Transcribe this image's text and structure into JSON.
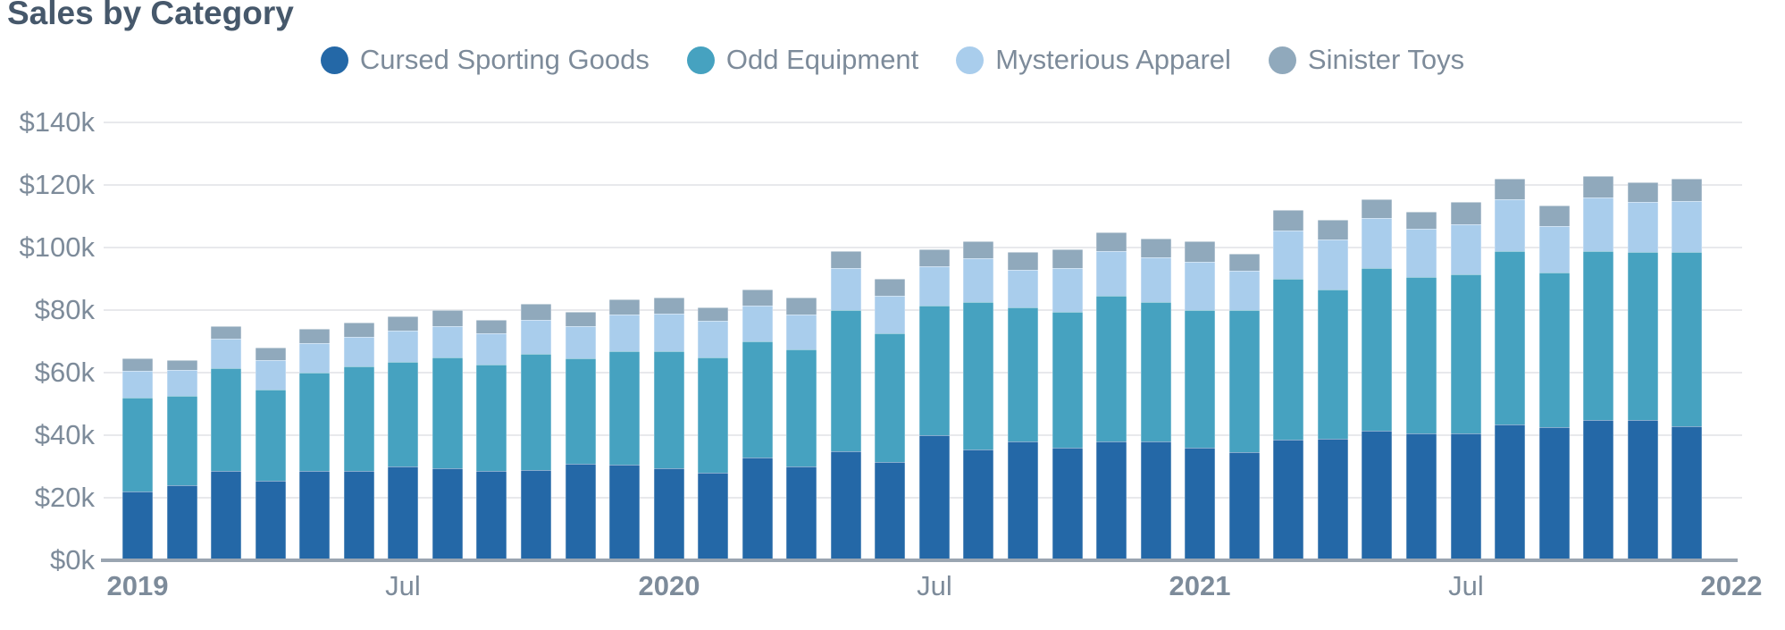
{
  "title": "Sales by Category",
  "colors": {
    "title_text": "#46586b",
    "axis_text": "#7d8b9a",
    "gridline": "#e8e9ec",
    "axis_baseline": "#9aa5b1",
    "background": "#ffffff"
  },
  "legend": {
    "position": "top-center",
    "items": [
      {
        "label": "Cursed Sporting Goods",
        "color": "#2468a7"
      },
      {
        "label": "Odd Equipment",
        "color": "#46a2c0"
      },
      {
        "label": "Mysterious Apparel",
        "color": "#a9cdec"
      },
      {
        "label": "Sinister Toys",
        "color": "#90a9bc"
      }
    ]
  },
  "chart_data": {
    "type": "bar",
    "stacked": true,
    "title": "Sales by Category",
    "xlabel": "",
    "ylabel": "",
    "units": "$k",
    "ylim": [
      0,
      140
    ],
    "ytick_step": 20,
    "ytick_labels": [
      "$0k",
      "$20k",
      "$40k",
      "$60k",
      "$80k",
      "$100k",
      "$120k",
      "$140k"
    ],
    "grid": "horizontal",
    "legend_position": "top",
    "categories": [
      "Jan 2019",
      "Feb 2019",
      "Mar 2019",
      "Apr 2019",
      "May 2019",
      "Jun 2019",
      "Jul 2019",
      "Aug 2019",
      "Sep 2019",
      "Oct 2019",
      "Nov 2019",
      "Dec 2019",
      "Jan 2020",
      "Feb 2020",
      "Mar 2020",
      "Apr 2020",
      "May 2020",
      "Jun 2020",
      "Jul 2020",
      "Aug 2020",
      "Sep 2020",
      "Oct 2020",
      "Nov 2020",
      "Dec 2020",
      "Jan 2021",
      "Feb 2021",
      "Mar 2021",
      "Apr 2021",
      "May 2021",
      "Jun 2021",
      "Jul 2021",
      "Aug 2021",
      "Sep 2021",
      "Oct 2021",
      "Nov 2021",
      "Dec 2021"
    ],
    "series": [
      {
        "name": "Cursed Sporting Goods",
        "color": "#2468a7",
        "values": [
          22,
          24,
          28.5,
          25.5,
          28.5,
          28.5,
          30,
          29.5,
          28.5,
          29,
          31,
          30.5,
          29.5,
          28,
          33,
          30,
          35,
          31.5,
          40,
          35.5,
          38,
          36,
          38,
          38,
          36,
          34.5,
          38.5,
          39,
          41.5,
          40.5,
          40.5,
          43.5,
          42.5,
          45,
          45,
          43
        ]
      },
      {
        "name": "Odd Equipment",
        "color": "#46a2c0",
        "values": [
          30,
          28.5,
          33,
          29,
          31.5,
          33.5,
          33.5,
          35.5,
          34,
          37,
          33.5,
          36.5,
          37.5,
          37,
          37,
          37.5,
          45,
          41,
          41.5,
          47,
          43,
          43.5,
          46.5,
          44.5,
          44,
          45.5,
          51.5,
          47.5,
          52,
          50,
          51,
          55.5,
          49.5,
          54,
          53.5,
          55.5
        ]
      },
      {
        "name": "Mysterious Apparel",
        "color": "#a9cdec",
        "values": [
          8.5,
          8.5,
          9.5,
          9.5,
          9.5,
          9.5,
          10,
          10,
          10,
          11,
          10.5,
          11.5,
          12,
          11.5,
          11.5,
          11,
          13.5,
          12,
          12.5,
          14,
          12,
          14,
          14.5,
          14.5,
          15.5,
          12.5,
          15.5,
          16,
          16,
          15.5,
          16,
          16.5,
          15,
          17,
          16,
          16.5
        ]
      },
      {
        "name": "Sinister Toys",
        "color": "#90a9bc",
        "values": [
          4,
          3,
          4,
          4,
          4.5,
          4.5,
          4.5,
          5,
          4.5,
          5,
          4.5,
          5,
          5,
          4.5,
          5,
          5.5,
          5.5,
          5.5,
          5.5,
          5.5,
          5.5,
          6,
          6,
          6,
          6.5,
          5.5,
          6.5,
          6.5,
          6,
          5.5,
          7,
          6.5,
          6.5,
          7,
          6.5,
          7
        ]
      }
    ],
    "xtick_labels": [
      {
        "barIndex": 0,
        "label": "2019",
        "bold": true
      },
      {
        "barIndex": 6,
        "label": "Jul",
        "bold": false
      },
      {
        "barIndex": 12,
        "label": "2020",
        "bold": true
      },
      {
        "barIndex": 18,
        "label": "Jul",
        "bold": false
      },
      {
        "barIndex": 24,
        "label": "2021",
        "bold": true
      },
      {
        "barIndex": 30,
        "label": "Jul",
        "bold": false
      },
      {
        "barIndex": 36,
        "label": "2022",
        "bold": true
      }
    ]
  }
}
